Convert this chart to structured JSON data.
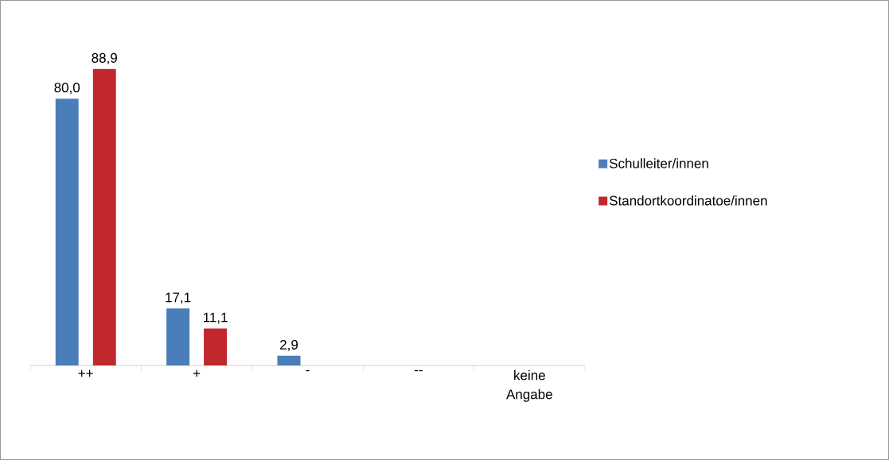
{
  "chart_data": {
    "type": "bar",
    "categories": [
      "++",
      "+",
      "-",
      "--",
      "keine Angabe"
    ],
    "series": [
      {
        "name": "Schulleiter/innen",
        "color": "#4a7ebb",
        "values": [
          80.0,
          17.1,
          2.9,
          null,
          null
        ],
        "value_labels": [
          "80,0",
          "17,1",
          "2,9",
          null,
          null
        ]
      },
      {
        "name": "Standortkoordinatoe/innen",
        "color": "#c0282d",
        "values": [
          88.9,
          11.1,
          null,
          null,
          null
        ],
        "value_labels": [
          "88,9",
          "11,1",
          null,
          null,
          null
        ]
      }
    ],
    "tick_labels": "x",
    "grid": false,
    "legend": "right"
  }
}
